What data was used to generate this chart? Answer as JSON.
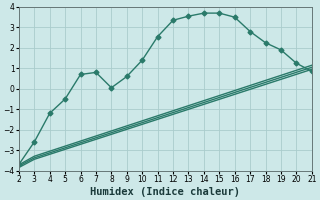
{
  "xlabel": "Humidex (Indice chaleur)",
  "ylabel": "",
  "bg_color": "#cde8e8",
  "grid_color": "#aacccc",
  "line_color": "#2a7a6a",
  "xlim": [
    2,
    21
  ],
  "ylim": [
    -4,
    4
  ],
  "xticks": [
    2,
    3,
    4,
    5,
    6,
    7,
    8,
    9,
    10,
    11,
    12,
    13,
    14,
    15,
    16,
    17,
    18,
    19,
    20,
    21
  ],
  "yticks": [
    -4,
    -3,
    -2,
    -1,
    0,
    1,
    2,
    3,
    4
  ],
  "line1_x": [
    2,
    3,
    4,
    5,
    6,
    7,
    8,
    9,
    10,
    11,
    12,
    13,
    14,
    15,
    16,
    17,
    18,
    19,
    20,
    21
  ],
  "line1_y": [
    -3.7,
    -2.6,
    -1.2,
    -0.5,
    0.7,
    0.8,
    0.05,
    0.6,
    1.4,
    2.55,
    3.35,
    3.55,
    3.7,
    3.7,
    3.5,
    2.8,
    2.25,
    1.9,
    1.25,
    0.85
  ],
  "line2_x": [
    2,
    3,
    21
  ],
  "line2_y": [
    -3.72,
    -3.3,
    1.15
  ],
  "line3_x": [
    2,
    3,
    21
  ],
  "line3_y": [
    -3.78,
    -3.38,
    1.05
  ],
  "line4_x": [
    2,
    3,
    21
  ],
  "line4_y": [
    -3.85,
    -3.45,
    0.95
  ],
  "marker": "D",
  "markersize": 2.5,
  "linewidth": 1.0,
  "tick_fontsize": 5.5,
  "xlabel_fontsize": 7.5
}
